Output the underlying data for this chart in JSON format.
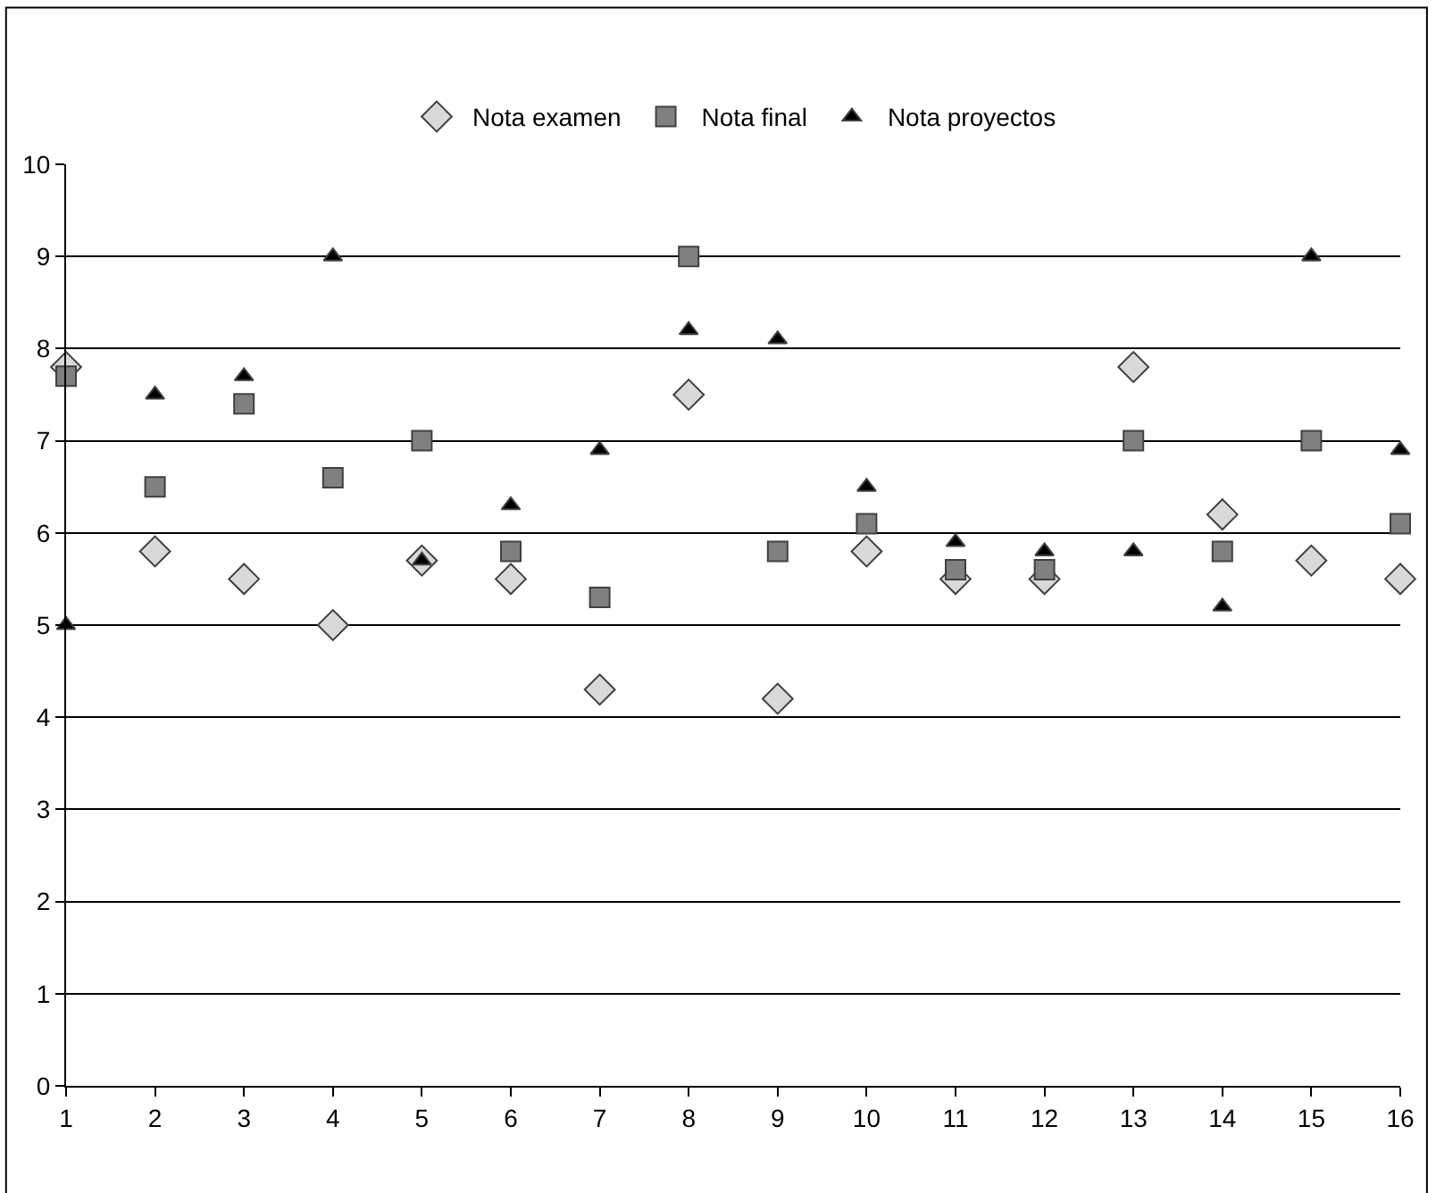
{
  "chart_data": {
    "type": "scatter",
    "x": [
      1,
      2,
      3,
      4,
      5,
      6,
      7,
      8,
      9,
      10,
      11,
      12,
      13,
      14,
      15,
      16
    ],
    "series": [
      {
        "name": "Nota examen",
        "color": "#d9d9d9",
        "marker": "diamond",
        "values": [
          7.8,
          5.8,
          5.5,
          5.0,
          5.7,
          5.5,
          4.3,
          7.5,
          4.2,
          5.8,
          5.5,
          5.5,
          7.8,
          6.2,
          5.7,
          5.5
        ]
      },
      {
        "name": "Nota final",
        "color": "#808080",
        "marker": "square",
        "values": [
          7.7,
          6.5,
          7.4,
          6.6,
          7.0,
          5.8,
          5.3,
          9.0,
          5.8,
          6.1,
          5.6,
          5.6,
          7.0,
          5.8,
          7.0,
          6.1
        ]
      },
      {
        "name": "Nota proyectos",
        "color": "#000000",
        "marker": "triangle",
        "values": [
          5.0,
          7.5,
          7.7,
          9.0,
          5.7,
          6.3,
          6.9,
          8.2,
          8.1,
          6.5,
          5.9,
          5.8,
          5.8,
          5.2,
          9.0,
          6.9
        ]
      }
    ],
    "xlim": [
      1,
      16
    ],
    "xticks": [
      1,
      2,
      3,
      4,
      5,
      6,
      7,
      8,
      9,
      10,
      11,
      12,
      13,
      14,
      15,
      16
    ],
    "ylim": [
      0,
      10
    ],
    "yticks": [
      0,
      1,
      2,
      3,
      4,
      5,
      6,
      7,
      8,
      9,
      10
    ],
    "grid": "y",
    "legend": "top"
  }
}
